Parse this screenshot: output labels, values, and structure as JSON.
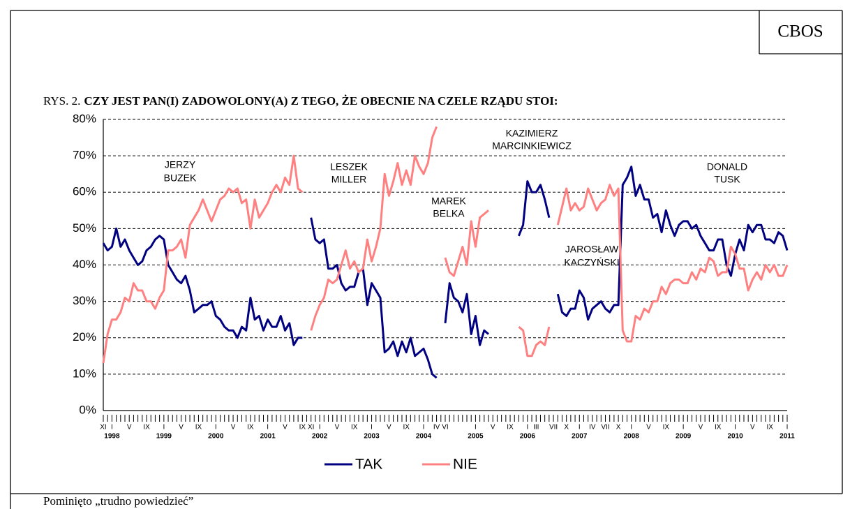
{
  "chart_data": {
    "type": "line",
    "corner_label": "CBOS",
    "title_prefix": "RYS. 2.",
    "title": "CZY JEST PAN(I) ZADOWOLONY(A) Z TEGO, ŻE OBECNIE NA CZELE RZĄDU STOI:",
    "footnote": "Pominięto „trudno powiedzieć”",
    "annotations": [
      [
        "JERZY",
        "BUZEK"
      ],
      [
        "LESZEK",
        "MILLER"
      ],
      [
        "MAREK",
        "BELKA"
      ],
      [
        "KAZIMIERZ",
        "MARCINKIEWICZ"
      ],
      [
        "JAROSŁAW",
        "KACZYŃSKI"
      ],
      [
        "DONALD",
        "TUSK"
      ]
    ],
    "categories": [
      "XI",
      null,
      "I",
      null,
      null,
      null,
      "V",
      null,
      null,
      null,
      "IX",
      null,
      null,
      null,
      "I",
      null,
      null,
      null,
      "V",
      null,
      null,
      null,
      "IX",
      null,
      null,
      null,
      "I",
      null,
      null,
      null,
      "V",
      null,
      null,
      null,
      "IX",
      null,
      null,
      null,
      "I",
      null,
      null,
      null,
      "V",
      null,
      null,
      null,
      "IX",
      null,
      "XI",
      null,
      "I",
      null,
      null,
      null,
      "V",
      null,
      null,
      null,
      "IX",
      null,
      null,
      null,
      "I",
      null,
      null,
      null,
      "V",
      null,
      null,
      null,
      "IX",
      null,
      null,
      null,
      "I",
      null,
      null,
      "IV",
      null,
      "VI",
      null,
      null,
      null,
      null,
      null,
      null,
      "I",
      null,
      null,
      null,
      "V",
      null,
      null,
      null,
      "IX",
      null,
      null,
      null,
      "I",
      null,
      "III",
      null,
      null,
      null,
      "VII",
      null,
      null,
      "X",
      null,
      null,
      "I",
      null,
      null,
      "IV",
      null,
      null,
      "VII",
      null,
      null,
      "X",
      null,
      null,
      "I",
      null,
      null,
      null,
      "V",
      null,
      null,
      null,
      "IX",
      null,
      null,
      null,
      "I",
      null,
      null,
      null,
      "V",
      null,
      null,
      null,
      "IX",
      null,
      null,
      null,
      "I",
      null,
      null,
      null,
      "V",
      null,
      null,
      null,
      "IX",
      null,
      null,
      null,
      "I"
    ],
    "category_years": [
      null,
      null,
      "1998",
      null,
      null,
      null,
      null,
      null,
      null,
      null,
      null,
      null,
      null,
      null,
      "1999",
      null,
      null,
      null,
      null,
      null,
      null,
      null,
      null,
      null,
      null,
      null,
      "2000",
      null,
      null,
      null,
      null,
      null,
      null,
      null,
      null,
      null,
      null,
      null,
      "2001",
      null,
      null,
      null,
      null,
      null,
      null,
      null,
      null,
      null,
      null,
      null,
      "2002",
      null,
      null,
      null,
      null,
      null,
      null,
      null,
      null,
      null,
      null,
      null,
      "2003",
      null,
      null,
      null,
      null,
      null,
      null,
      null,
      null,
      null,
      null,
      null,
      "2004",
      null,
      null,
      null,
      null,
      null,
      null,
      null,
      null,
      null,
      null,
      null,
      "2005",
      null,
      null,
      null,
      null,
      null,
      null,
      null,
      null,
      null,
      null,
      null,
      "2006",
      null,
      null,
      null,
      null,
      null,
      null,
      null,
      null,
      null,
      null,
      null,
      "2007",
      null,
      null,
      null,
      null,
      null,
      null,
      null,
      null,
      null,
      null,
      null,
      "2008",
      null,
      null,
      null,
      null,
      null,
      null,
      null,
      null,
      null,
      null,
      null,
      "2009",
      null,
      null,
      null,
      null,
      null,
      null,
      null,
      null,
      null,
      null,
      null,
      "2010",
      null,
      null,
      null,
      null,
      null,
      null,
      null,
      null,
      null,
      null,
      null,
      "2011"
    ],
    "series": [
      {
        "name": "TAK",
        "color": "#000080",
        "values": [
          46,
          44,
          45,
          50,
          45,
          47,
          44,
          42,
          40,
          41,
          44,
          45,
          47,
          48,
          47,
          40,
          38,
          36,
          35,
          37,
          33,
          27,
          28,
          29,
          29,
          30,
          26,
          25,
          23,
          22,
          22,
          20,
          23,
          22,
          31,
          25,
          26,
          22,
          25,
          23,
          23,
          26,
          22,
          24,
          18,
          20,
          20,
          null,
          53,
          47,
          46,
          47,
          39,
          39,
          40,
          35,
          33,
          34,
          34,
          38,
          39,
          29,
          35,
          33,
          31,
          16,
          17,
          19,
          15,
          19,
          16,
          20,
          15,
          16,
          17,
          14,
          10,
          9,
          null,
          24,
          35,
          31,
          30,
          27,
          32,
          21,
          26,
          18,
          22,
          21,
          null,
          null,
          null,
          null,
          null,
          null,
          48,
          51,
          63,
          60,
          60,
          62,
          58,
          53,
          null,
          32,
          27,
          26,
          28,
          28,
          33,
          31,
          25,
          28,
          29,
          30,
          28,
          27,
          29,
          29,
          62,
          64,
          67,
          59,
          62,
          58,
          58,
          53,
          54,
          49,
          55,
          51,
          48,
          51,
          52,
          52,
          50,
          51,
          48,
          46,
          44,
          44,
          47,
          47,
          40,
          37,
          43,
          47,
          44,
          51,
          49,
          51,
          51,
          47,
          47,
          46,
          49,
          48,
          44
        ]
      },
      {
        "name": "NIE",
        "color": "#ff8080",
        "values": [
          13,
          21,
          25,
          25,
          27,
          31,
          30,
          35,
          33,
          33,
          30,
          30,
          28,
          31,
          33,
          44,
          44,
          45,
          47,
          42,
          51,
          53,
          55,
          58,
          55,
          52,
          55,
          58,
          59,
          61,
          60,
          61,
          57,
          58,
          50,
          58,
          53,
          55,
          57,
          60,
          62,
          60,
          64,
          62,
          70,
          61,
          60,
          null,
          22,
          26,
          29,
          31,
          36,
          35,
          36,
          40,
          44,
          39,
          41,
          38,
          39,
          47,
          41,
          45,
          50,
          65,
          59,
          63,
          68,
          62,
          66,
          62,
          70,
          67,
          65,
          68,
          75,
          78,
          null,
          42,
          38,
          37,
          41,
          45,
          40,
          52,
          45,
          53,
          54,
          55,
          null,
          null,
          null,
          null,
          null,
          null,
          23,
          22,
          15,
          15,
          18,
          19,
          18,
          23,
          null,
          51,
          56,
          61,
          55,
          57,
          55,
          56,
          61,
          58,
          55,
          57,
          58,
          62,
          59,
          61,
          22,
          19,
          19,
          26,
          25,
          28,
          27,
          30,
          30,
          34,
          32,
          35,
          36,
          36,
          35,
          35,
          38,
          36,
          39,
          38,
          42,
          41,
          37,
          38,
          38,
          45,
          43,
          39,
          39,
          33,
          36,
          38,
          36,
          40,
          38,
          40,
          37,
          37,
          40
        ]
      }
    ],
    "ylim": [
      0,
      80
    ],
    "yticks": [
      {
        "value": 0,
        "label": "0%"
      },
      {
        "value": 10,
        "label": "10%"
      },
      {
        "value": 20,
        "label": "20%"
      },
      {
        "value": 30,
        "label": "30%"
      },
      {
        "value": 40,
        "label": "40%"
      },
      {
        "value": 50,
        "label": "50%"
      },
      {
        "value": 60,
        "label": "60%"
      },
      {
        "value": 70,
        "label": "70%"
      },
      {
        "value": 80,
        "label": "80%"
      }
    ],
    "grid": true,
    "legend": "bottom"
  }
}
